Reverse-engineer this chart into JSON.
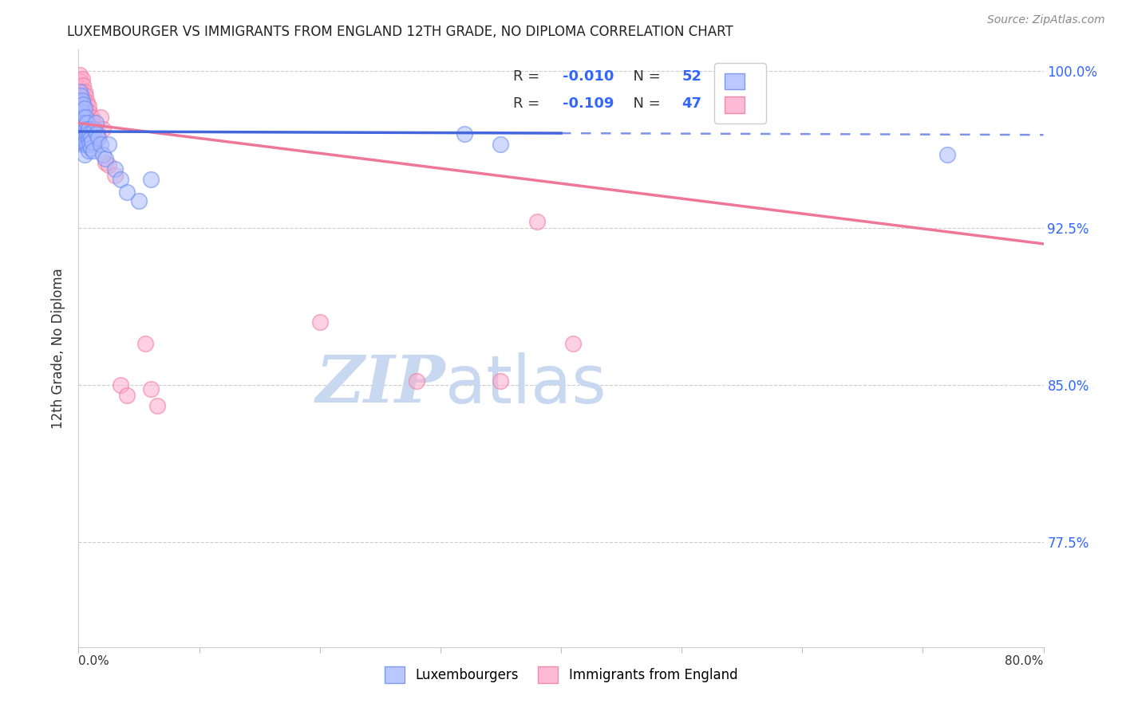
{
  "title": "LUXEMBOURGER VS IMMIGRANTS FROM ENGLAND 12TH GRADE, NO DIPLOMA CORRELATION CHART",
  "source": "Source: ZipAtlas.com",
  "ylabel": "12th Grade, No Diploma",
  "ylabel_right_ticks": [
    100.0,
    92.5,
    85.0,
    77.5
  ],
  "xlim": [
    0.0,
    0.8
  ],
  "ylim": [
    0.725,
    1.01
  ],
  "legend_r1_val": "-0.010",
  "legend_n1_val": "52",
  "legend_r2_val": "-0.109",
  "legend_n2_val": "47",
  "legend_label1": "Luxembourgers",
  "legend_label2": "Immigrants from England",
  "blue_color": "#AABBFF",
  "pink_color": "#FFAACC",
  "blue_edge": "#6688EE",
  "pink_edge": "#EE7799",
  "trend_blue": "#4466DD",
  "trend_pink": "#EE7799",
  "blue_scatter_x": [
    0.001,
    0.001,
    0.001,
    0.002,
    0.002,
    0.002,
    0.002,
    0.003,
    0.003,
    0.003,
    0.003,
    0.003,
    0.004,
    0.004,
    0.004,
    0.004,
    0.005,
    0.005,
    0.005,
    0.005,
    0.005,
    0.006,
    0.006,
    0.006,
    0.007,
    0.007,
    0.007,
    0.008,
    0.008,
    0.008,
    0.009,
    0.009,
    0.01,
    0.01,
    0.011,
    0.012,
    0.013,
    0.014,
    0.015,
    0.016,
    0.018,
    0.02,
    0.022,
    0.025,
    0.03,
    0.035,
    0.04,
    0.05,
    0.06,
    0.32,
    0.35,
    0.72
  ],
  "blue_scatter_y": [
    0.99,
    0.985,
    0.98,
    0.988,
    0.982,
    0.978,
    0.972,
    0.986,
    0.98,
    0.975,
    0.97,
    0.965,
    0.984,
    0.978,
    0.972,
    0.966,
    0.982,
    0.975,
    0.97,
    0.965,
    0.96,
    0.978,
    0.972,
    0.966,
    0.975,
    0.97,
    0.965,
    0.972,
    0.967,
    0.962,
    0.97,
    0.965,
    0.968,
    0.963,
    0.966,
    0.962,
    0.972,
    0.975,
    0.97,
    0.968,
    0.965,
    0.96,
    0.958,
    0.965,
    0.953,
    0.948,
    0.942,
    0.938,
    0.948,
    0.97,
    0.965,
    0.96
  ],
  "pink_scatter_x": [
    0.001,
    0.001,
    0.002,
    0.002,
    0.003,
    0.003,
    0.003,
    0.003,
    0.003,
    0.004,
    0.004,
    0.004,
    0.005,
    0.005,
    0.005,
    0.006,
    0.006,
    0.007,
    0.007,
    0.007,
    0.008,
    0.008,
    0.008,
    0.009,
    0.009,
    0.01,
    0.01,
    0.011,
    0.012,
    0.013,
    0.015,
    0.016,
    0.018,
    0.02,
    0.022,
    0.025,
    0.03,
    0.035,
    0.04,
    0.055,
    0.06,
    0.065,
    0.38,
    0.41,
    0.2,
    0.28,
    0.35
  ],
  "pink_scatter_y": [
    0.998,
    0.992,
    0.995,
    0.989,
    0.996,
    0.99,
    0.985,
    0.98,
    0.975,
    0.993,
    0.987,
    0.982,
    0.99,
    0.985,
    0.98,
    0.988,
    0.983,
    0.985,
    0.98,
    0.975,
    0.983,
    0.978,
    0.973,
    0.98,
    0.975,
    0.976,
    0.971,
    0.978,
    0.975,
    0.965,
    0.972,
    0.968,
    0.978,
    0.972,
    0.956,
    0.955,
    0.95,
    0.85,
    0.845,
    0.87,
    0.848,
    0.84,
    0.928,
    0.87,
    0.88,
    0.852,
    0.852
  ],
  "blue_size": 200,
  "pink_size": 200,
  "background_color": "#FFFFFF",
  "grid_color": "#CCCCCC",
  "right_tick_color": "#3366FF",
  "watermark_zip": "ZIP",
  "watermark_atlas": "atlas",
  "watermark_color_zip": "#C8D8F0",
  "watermark_color_atlas": "#C8D8F0",
  "watermark_fontsize": 60,
  "blue_trend_start_x": 0.0,
  "blue_trend_end_solid_x": 0.4,
  "blue_trend_y_at_0": 0.971,
  "blue_trend_slope": -0.002,
  "pink_trend_y_at_0": 0.975,
  "pink_trend_slope": -0.072
}
